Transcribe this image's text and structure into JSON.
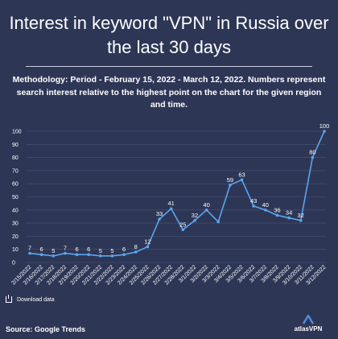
{
  "title": "Interest in keyword \"VPN\" in Russia over the last 30 days",
  "methodology": {
    "label": "Methodology:",
    "text": " Period - February 15, 2022 - March 12, 2022. Numbers represent search interest relative to the highest point on the chart for the given region and time."
  },
  "download_label": "Download data",
  "source": "Source: Google Trends",
  "brand": "atlasVPN",
  "colors": {
    "background": "#2e3656",
    "line": "#5aa6ee",
    "grid": "#4a5274",
    "text": "#ffffff"
  },
  "chart_data": {
    "type": "line",
    "x": [
      "2/15/2022",
      "2/16/2022",
      "2/17/2022",
      "2/18/2022",
      "2/19/2022",
      "2/20/2022",
      "2/21/2022",
      "2/22/2022",
      "2/23/2022",
      "2/24/2022",
      "2/25/2022",
      "2/26/2022",
      "2/27/2022",
      "2/28/2022",
      "3/1/2022",
      "3/2/2022",
      "3/3/2022",
      "3/4/2022",
      "3/5/2022",
      "3/6/2022",
      "3/7/2022",
      "3/8/2022",
      "3/9/2022",
      "3/10/2022",
      "3/11/2022",
      "3/12/2022"
    ],
    "series": [
      {
        "values": [
          7,
          6,
          5,
          7,
          6,
          6,
          5,
          5,
          6,
          8,
          12,
          33,
          41,
          25,
          32,
          40,
          31,
          59,
          63,
          43,
          40,
          36,
          34,
          32,
          80,
          100
        ],
        "labels": [
          "7",
          "6",
          "5",
          "7",
          "6",
          "6",
          "5",
          "5",
          "6",
          "8",
          "12",
          "33",
          "41",
          "25",
          "32",
          "40",
          "",
          "59",
          "63",
          "43",
          "40",
          "36",
          "34",
          "32",
          "80",
          "100"
        ]
      }
    ],
    "yticks": [
      "0",
      "10",
      "20",
      "30",
      "40",
      "50",
      "60",
      "70",
      "80",
      "90",
      "100"
    ],
    "ylim": [
      0,
      100
    ],
    "grid": true,
    "legend": "none"
  }
}
